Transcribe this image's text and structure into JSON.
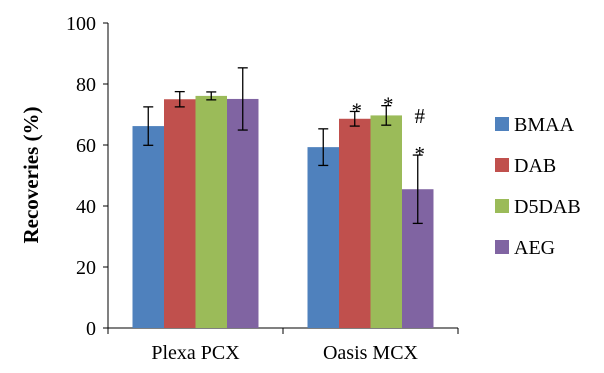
{
  "chart_data": {
    "type": "bar",
    "title": "",
    "xlabel": "",
    "ylabel": "Recoveries (%)",
    "ylim": [
      0,
      100
    ],
    "yticks": [
      0,
      20,
      40,
      60,
      80,
      100
    ],
    "grid": false,
    "legend_position": "right",
    "categories": [
      "Plexa PCX",
      "Oasis MCX"
    ],
    "series": [
      {
        "name": "BMAA",
        "color": "#4F81BD",
        "values": [
          66.2,
          59.3
        ],
        "errors": [
          6.3,
          6.0
        ],
        "annotations": [
          "",
          ""
        ]
      },
      {
        "name": "DAB",
        "color": "#C0504D",
        "values": [
          75.0,
          68.6
        ],
        "errors": [
          2.5,
          2.4
        ],
        "annotations": [
          "",
          "*"
        ]
      },
      {
        "name": "D5DAB",
        "color": "#9BBB59",
        "values": [
          76.1,
          69.7
        ],
        "errors": [
          1.3,
          3.2
        ],
        "annotations": [
          "",
          "*"
        ]
      },
      {
        "name": "AEG",
        "color": "#8064A2",
        "values": [
          75.1,
          45.5
        ],
        "errors": [
          10.2,
          11.2
        ],
        "annotations": [
          "",
          "#\n*"
        ]
      }
    ]
  }
}
